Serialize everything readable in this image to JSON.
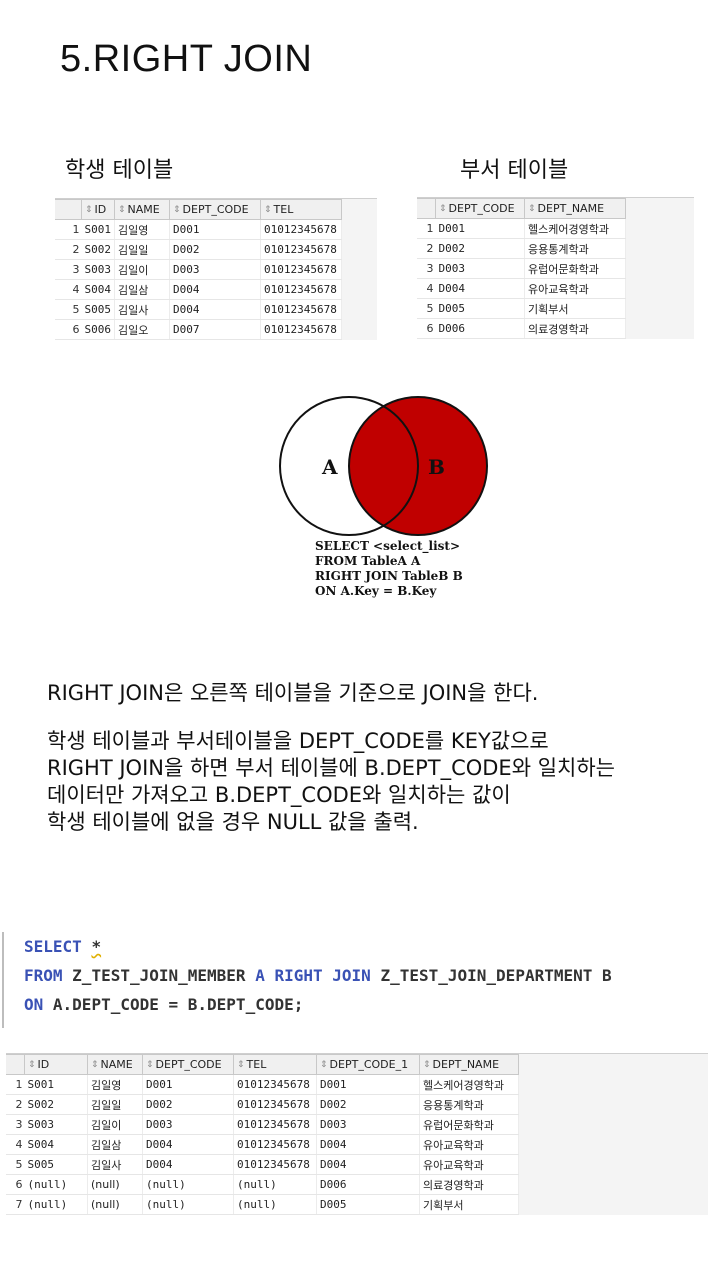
{
  "title": "5.RIGHT JOIN",
  "student_table": {
    "caption": "학생 테이블",
    "columns": [
      "ID",
      "NAME",
      "DEPT_CODE",
      "TEL"
    ],
    "rows": [
      [
        "1",
        "S001",
        "김일영",
        "D001",
        "01012345678"
      ],
      [
        "2",
        "S002",
        "김일일",
        "D002",
        "01012345678"
      ],
      [
        "3",
        "S003",
        "김일이",
        "D003",
        "01012345678"
      ],
      [
        "4",
        "S004",
        "김일삼",
        "D004",
        "01012345678"
      ],
      [
        "5",
        "S005",
        "김일사",
        "D004",
        "01012345678"
      ],
      [
        "6",
        "S006",
        "김일오",
        "D007",
        "01012345678"
      ]
    ]
  },
  "dept_table": {
    "caption": "부서 테이블",
    "columns": [
      "DEPT_CODE",
      "DEPT_NAME"
    ],
    "rows": [
      [
        "1",
        "D001",
        "헬스케어경영학과"
      ],
      [
        "2",
        "D002",
        "응용통계학과"
      ],
      [
        "3",
        "D003",
        "유럽어문화학과"
      ],
      [
        "4",
        "D004",
        "유아교육학과"
      ],
      [
        "5",
        "D005",
        "기획부서"
      ],
      [
        "6",
        "D006",
        "의료경영학과"
      ]
    ]
  },
  "venn": {
    "label_a": "A",
    "label_b": "B",
    "fill_color": "#c00000",
    "caption_lines": [
      "SELECT <select_list>",
      "FROM TableA A",
      "RIGHT JOIN TableB B",
      "ON A.Key = B.Key"
    ]
  },
  "description": {
    "line1": "RIGHT JOIN은 오른쪽 테이블을 기준으로 JOIN을 한다.",
    "line2": "학생 테이블과 부서테이블을 DEPT_CODE를 KEY값으로",
    "line3": "RIGHT JOIN을 하면 부서 테이블에 B.DEPT_CODE와 일치하는",
    "line4": "데이터만 가져오고 B.DEPT_CODE와 일치하는 값이",
    "line5": "학생 테이블에 없을 경우 NULL 값을 출력."
  },
  "sql": {
    "line1": [
      "SELECT",
      "*"
    ],
    "line2": [
      "FROM",
      "Z_TEST_JOIN_MEMBER",
      "A",
      "RIGHT JOIN",
      "Z_TEST_JOIN_DEPARTMENT",
      "B"
    ],
    "line3": [
      "ON",
      "A.DEPT_CODE = B.DEPT_CODE;"
    ]
  },
  "result_table": {
    "columns": [
      "ID",
      "NAME",
      "DEPT_CODE",
      "TEL",
      "DEPT_CODE_1",
      "DEPT_NAME"
    ],
    "rows": [
      [
        "1",
        "S001",
        "김일영",
        "D001",
        "01012345678",
        "D001",
        "헬스케어경영학과"
      ],
      [
        "2",
        "S002",
        "김일일",
        "D002",
        "01012345678",
        "D002",
        "응용통계학과"
      ],
      [
        "3",
        "S003",
        "김일이",
        "D003",
        "01012345678",
        "D003",
        "유럽어문화학과"
      ],
      [
        "4",
        "S004",
        "김일삼",
        "D004",
        "01012345678",
        "D004",
        "유아교육학과"
      ],
      [
        "5",
        "S005",
        "김일사",
        "D004",
        "01012345678",
        "D004",
        "유아교육학과"
      ],
      [
        "6",
        "(null)",
        "(null)",
        "(null)",
        "(null)",
        "D006",
        "의료경영학과"
      ],
      [
        "7",
        "(null)",
        "(null)",
        "(null)",
        "(null)",
        "D005",
        "기획부서"
      ]
    ]
  }
}
